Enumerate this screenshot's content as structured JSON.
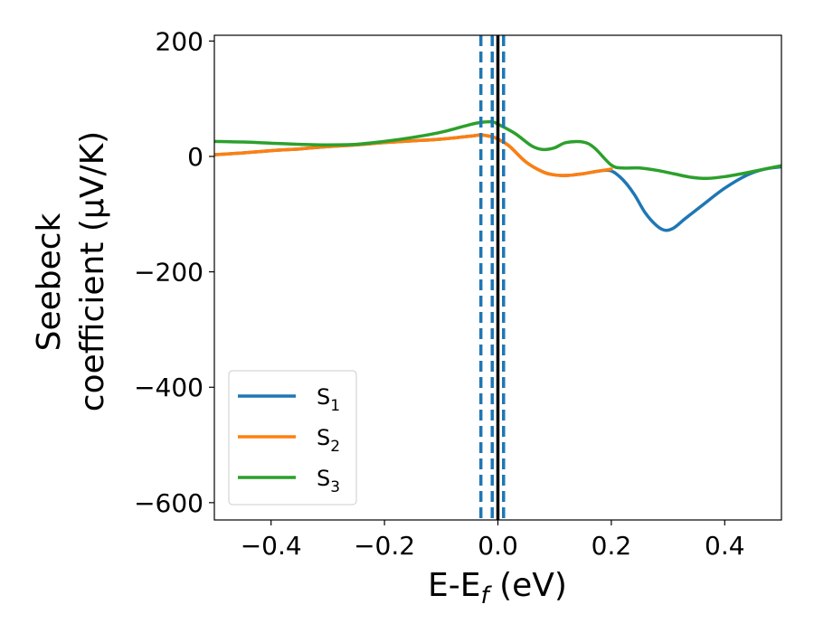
{
  "chart_data": {
    "type": "line",
    "xlabel": {
      "main": "E-E",
      "sub": "f",
      "unit": " (eV)"
    },
    "ylabel": {
      "line1": "Seebeck",
      "line2": "coefficient  (μV/K)"
    },
    "xlim": [
      -0.5,
      0.5
    ],
    "ylim": [
      -630,
      210
    ],
    "x_ticks": [
      -0.4,
      -0.2,
      0.0,
      0.2,
      0.4
    ],
    "x_tick_labels": [
      "−0.4",
      "−0.2",
      "0.0",
      "0.2",
      "0.4"
    ],
    "y_ticks": [
      200,
      0,
      -200,
      -400,
      -600
    ],
    "y_tick_labels": [
      "200",
      "0",
      "−200",
      "−400",
      "−600"
    ],
    "grid": false,
    "legend_position": "lower-left",
    "series": [
      {
        "name": "S",
        "sub": "1",
        "color": "#1f77b4",
        "points": [
          [
            -0.5,
            3
          ],
          [
            -0.45,
            6
          ],
          [
            -0.4,
            10
          ],
          [
            -0.35,
            13
          ],
          [
            -0.3,
            17
          ],
          [
            -0.25,
            20
          ],
          [
            -0.2,
            24
          ],
          [
            -0.15,
            27
          ],
          [
            -0.1,
            30
          ],
          [
            -0.05,
            35
          ],
          [
            -0.03,
            37
          ],
          [
            -0.01,
            34
          ],
          [
            0.0,
            30
          ],
          [
            0.02,
            18
          ],
          [
            0.05,
            -10
          ],
          [
            0.08,
            -27
          ],
          [
            0.1,
            -32
          ],
          [
            0.12,
            -33
          ],
          [
            0.15,
            -30
          ],
          [
            0.18,
            -25
          ],
          [
            0.2,
            -25
          ],
          [
            0.22,
            -40
          ],
          [
            0.24,
            -65
          ],
          [
            0.26,
            -98
          ],
          [
            0.28,
            -120
          ],
          [
            0.295,
            -128
          ],
          [
            0.31,
            -124
          ],
          [
            0.33,
            -108
          ],
          [
            0.36,
            -85
          ],
          [
            0.4,
            -55
          ],
          [
            0.44,
            -32
          ],
          [
            0.47,
            -22
          ],
          [
            0.5,
            -18
          ]
        ]
      },
      {
        "name": "S",
        "sub": "2",
        "color": "#ff7f0e",
        "points": [
          [
            -0.5,
            3
          ],
          [
            -0.45,
            6
          ],
          [
            -0.4,
            10
          ],
          [
            -0.35,
            13
          ],
          [
            -0.3,
            17
          ],
          [
            -0.25,
            20
          ],
          [
            -0.2,
            24
          ],
          [
            -0.15,
            27
          ],
          [
            -0.1,
            30
          ],
          [
            -0.05,
            35
          ],
          [
            -0.03,
            37
          ],
          [
            -0.01,
            34
          ],
          [
            0.0,
            30
          ],
          [
            0.02,
            18
          ],
          [
            0.05,
            -10
          ],
          [
            0.08,
            -27
          ],
          [
            0.1,
            -32
          ],
          [
            0.12,
            -33
          ],
          [
            0.15,
            -30
          ],
          [
            0.18,
            -25
          ],
          [
            0.2,
            -22
          ]
        ]
      },
      {
        "name": "S",
        "sub": "3",
        "color": "#2ca02c",
        "points": [
          [
            -0.5,
            26
          ],
          [
            -0.45,
            25
          ],
          [
            -0.4,
            23
          ],
          [
            -0.35,
            21
          ],
          [
            -0.3,
            20
          ],
          [
            -0.25,
            21
          ],
          [
            -0.2,
            26
          ],
          [
            -0.15,
            33
          ],
          [
            -0.1,
            42
          ],
          [
            -0.05,
            55
          ],
          [
            -0.03,
            59
          ],
          [
            -0.01,
            60
          ],
          [
            0.0,
            56
          ],
          [
            0.03,
            40
          ],
          [
            0.06,
            18
          ],
          [
            0.08,
            12
          ],
          [
            0.1,
            15
          ],
          [
            0.12,
            24
          ],
          [
            0.15,
            25
          ],
          [
            0.17,
            15
          ],
          [
            0.2,
            -15
          ],
          [
            0.22,
            -20
          ],
          [
            0.25,
            -20
          ],
          [
            0.28,
            -24
          ],
          [
            0.31,
            -30
          ],
          [
            0.34,
            -36
          ],
          [
            0.37,
            -38
          ],
          [
            0.4,
            -35
          ],
          [
            0.44,
            -28
          ],
          [
            0.47,
            -22
          ],
          [
            0.5,
            -16
          ]
        ]
      }
    ],
    "vertical_lines": [
      {
        "x": -0.03,
        "style": "dashed",
        "color": "#1f77b4"
      },
      {
        "x": -0.01,
        "style": "dashed",
        "color": "#1f77b4"
      },
      {
        "x": 0.01,
        "style": "dashed",
        "color": "#1f77b4"
      },
      {
        "x": 0.0,
        "style": "solid",
        "color": "#000000"
      }
    ]
  }
}
